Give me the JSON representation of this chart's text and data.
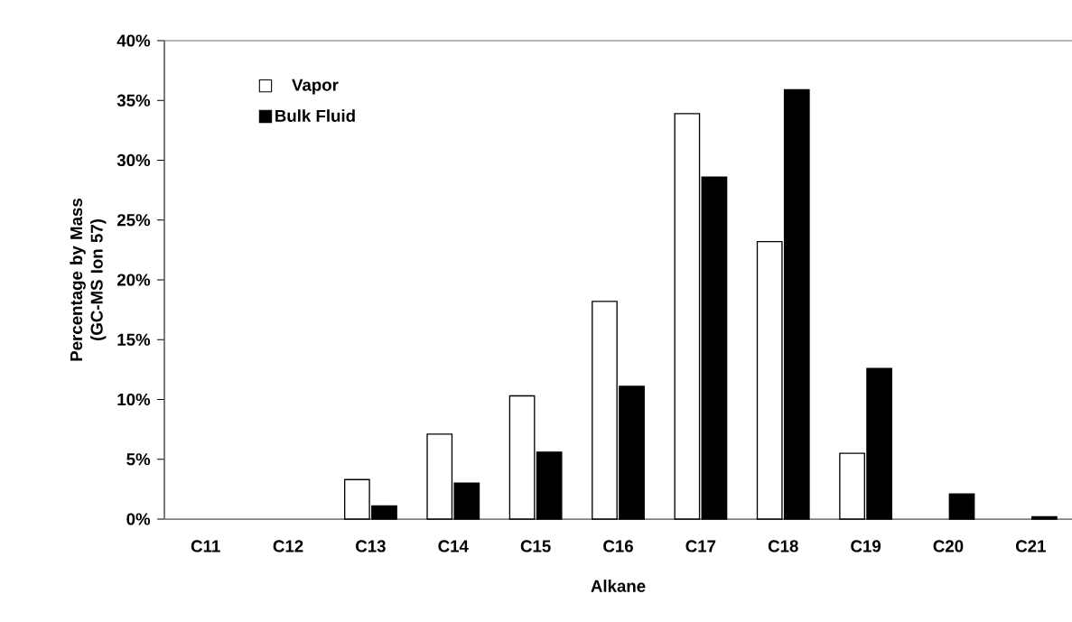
{
  "chart_data": {
    "type": "bar",
    "xlabel": "Alkane",
    "ylabel": "Percentage by Mass (GC-MS Ion 57)",
    "categories": [
      "C11",
      "C12",
      "C13",
      "C14",
      "C15",
      "C16",
      "C17",
      "C18",
      "C19",
      "C20",
      "C21"
    ],
    "series": [
      {
        "name": "Vapor",
        "color": "#ffffff",
        "values": [
          null,
          null,
          3.3,
          7.1,
          10.3,
          18.2,
          33.9,
          23.2,
          5.5,
          null,
          null
        ]
      },
      {
        "name": "Bulk Fluid",
        "color": "#000000",
        "values": [
          null,
          null,
          1.1,
          3.0,
          5.6,
          11.1,
          28.6,
          35.9,
          12.6,
          2.1,
          0.2
        ]
      }
    ],
    "ylim": [
      0,
      40
    ],
    "yticks": [
      {
        "value": 0,
        "label": "0%"
      },
      {
        "value": 5,
        "label": "5%"
      },
      {
        "value": 10,
        "label": "10%"
      },
      {
        "value": 15,
        "label": "15%"
      },
      {
        "value": 20,
        "label": "20%"
      },
      {
        "value": 25,
        "label": "25%"
      },
      {
        "value": 30,
        "label": "30%"
      },
      {
        "value": 35,
        "label": "35%"
      },
      {
        "value": 40,
        "label": "40%"
      }
    ],
    "grid": false,
    "legend": "top left"
  }
}
